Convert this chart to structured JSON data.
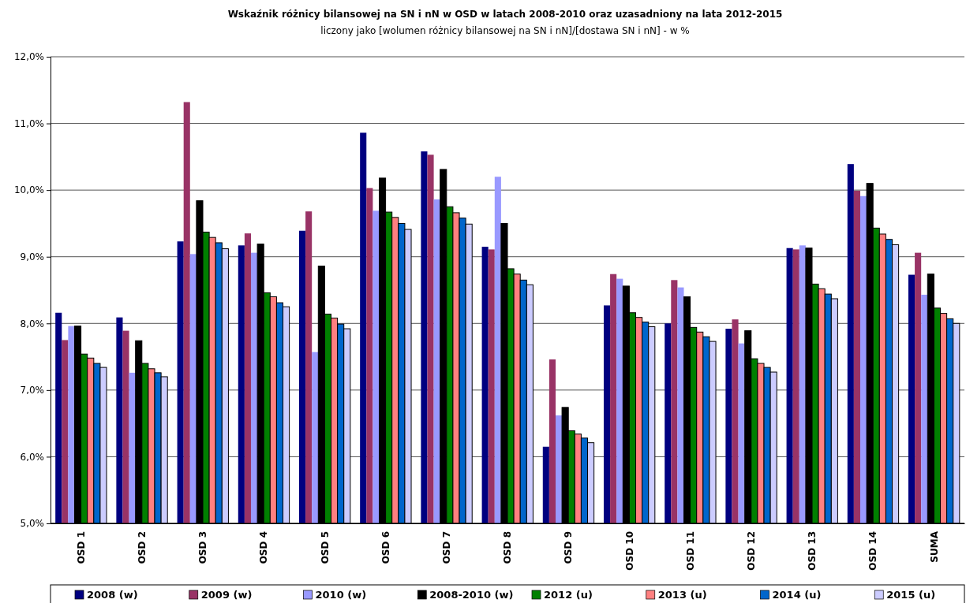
{
  "chart_data": {
    "type": "bar",
    "title": "Wskaźnik różnicy bilansowej na SN i nN w OSD w latach 2008-2010 oraz uzasadniony na lata 2012-2015",
    "subtitle": "liczony jako [wolumen różnicy bilansowej na SN i nN]/[dostawa SN i nN] - w %",
    "categories": [
      "OSD 1",
      "OSD 2",
      "OSD 3",
      "OSD 4",
      "OSD 5",
      "OSD 6",
      "OSD 7",
      "OSD 8",
      "OSD 9",
      "OSD 10",
      "OSD 11",
      "OSD 12",
      "OSD 13",
      "OSD 14",
      "SUMA"
    ],
    "series": [
      {
        "name": "2008 (w)",
        "color": "#000080",
        "values": [
          8.16,
          8.09,
          9.23,
          9.17,
          9.39,
          10.86,
          10.58,
          9.15,
          6.15,
          8.27,
          8.0,
          7.92,
          9.13,
          10.39,
          8.73
        ]
      },
      {
        "name": "2009 (w)",
        "color": "#993366",
        "values": [
          7.75,
          7.89,
          11.32,
          9.35,
          9.68,
          10.03,
          10.53,
          9.11,
          7.46,
          8.74,
          8.65,
          8.06,
          9.11,
          9.99,
          9.06
        ]
      },
      {
        "name": "2010 (w)",
        "color": "#9999ff",
        "values": [
          7.96,
          7.26,
          9.04,
          9.06,
          7.57,
          9.69,
          9.86,
          10.2,
          6.62,
          8.67,
          8.54,
          7.7,
          9.17,
          9.91,
          8.43
        ]
      },
      {
        "name": "2008-2010 (w)",
        "color": "#000000",
        "values": [
          7.96,
          7.74,
          9.84,
          9.19,
          8.86,
          10.18,
          10.31,
          9.5,
          6.74,
          8.56,
          8.4,
          7.89,
          9.13,
          10.1,
          8.74
        ]
      },
      {
        "name": "2012 (u)",
        "color": "#008000",
        "values": [
          7.54,
          7.4,
          9.37,
          8.46,
          8.14,
          9.67,
          9.75,
          8.82,
          6.39,
          8.16,
          7.94,
          7.47,
          8.59,
          9.43,
          8.23
        ]
      },
      {
        "name": "2013 (u)",
        "color": "#ff8080",
        "values": [
          7.48,
          7.32,
          9.29,
          8.4,
          8.08,
          9.59,
          9.66,
          8.74,
          6.34,
          8.09,
          7.87,
          7.4,
          8.52,
          9.34,
          8.15
        ]
      },
      {
        "name": "2014 (u)",
        "color": "#0066cc",
        "values": [
          7.4,
          7.26,
          9.21,
          8.31,
          7.99,
          9.5,
          9.58,
          8.65,
          6.28,
          8.02,
          7.8,
          7.34,
          8.44,
          9.26,
          8.07
        ]
      },
      {
        "name": "2015 (u)",
        "color": "#ccccff",
        "values": [
          7.34,
          7.2,
          9.12,
          8.25,
          7.92,
          9.41,
          9.49,
          8.58,
          6.21,
          7.95,
          7.73,
          7.27,
          8.37,
          9.18,
          8.0
        ]
      }
    ],
    "ylim": [
      5,
      12
    ],
    "yticks": [
      {
        "value": 5,
        "label": "5,0%"
      },
      {
        "value": 6,
        "label": "6,0%"
      },
      {
        "value": 7,
        "label": "7,0%"
      },
      {
        "value": 8,
        "label": "8,0%"
      },
      {
        "value": 9,
        "label": "9,0%"
      },
      {
        "value": 10,
        "label": "10,0%"
      },
      {
        "value": 11,
        "label": "11,0%"
      },
      {
        "value": 12,
        "label": "12,0%"
      }
    ],
    "grid": "y",
    "legend": "bottom"
  }
}
